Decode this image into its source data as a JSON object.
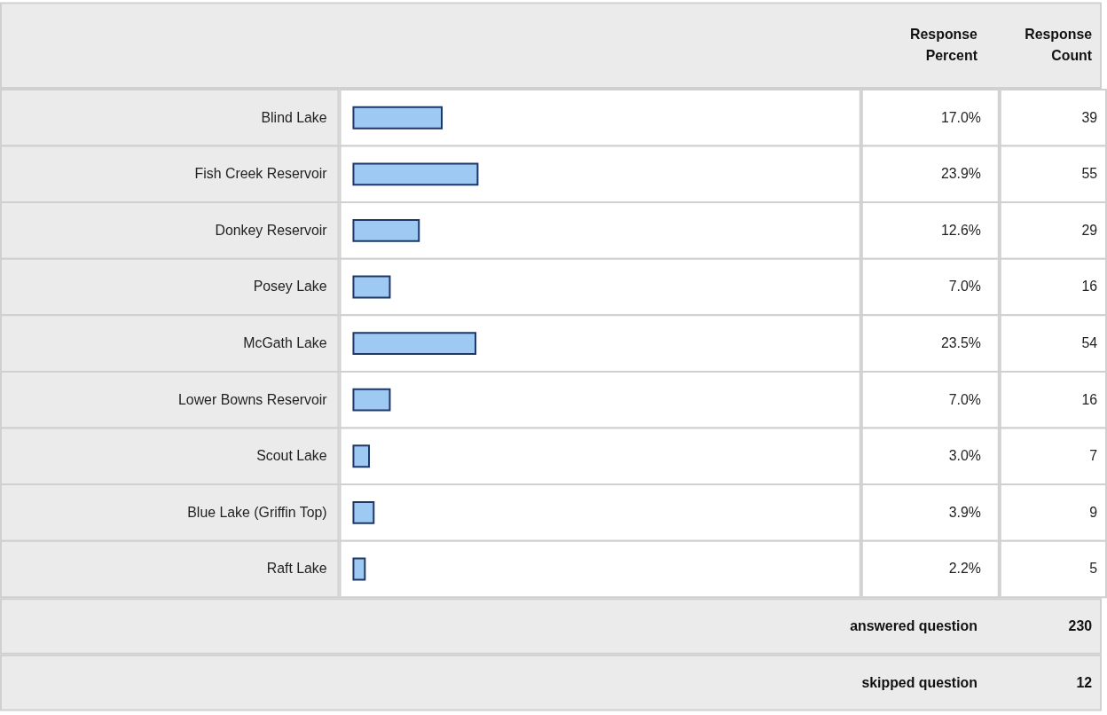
{
  "chart_data": {
    "type": "bar",
    "orientation": "horizontal",
    "categories": [
      "Blind Lake",
      "Fish Creek Reservoir",
      "Donkey Reservoir",
      "Posey Lake",
      "McGath Lake",
      "Lower Bowns Reservoir",
      "Scout Lake",
      "Blue Lake (Griffin Top)",
      "Raft Lake"
    ],
    "values": [
      17.0,
      23.9,
      12.6,
      7.0,
      23.5,
      7.0,
      3.0,
      3.9,
      2.2
    ],
    "value_labels": [
      "17.0%",
      "23.9%",
      "12.6%",
      "7.0%",
      "23.5%",
      "7.0%",
      "3.0%",
      "3.9%",
      "2.2%"
    ],
    "color": "#9ec9f3",
    "annotations": [
      "Response Percent",
      "Response Count",
      "answered question",
      "230",
      "skipped question",
      "12",
      "39",
      "55",
      "29",
      "16",
      "54",
      "16",
      "7",
      "9",
      "5"
    ]
  }
}
